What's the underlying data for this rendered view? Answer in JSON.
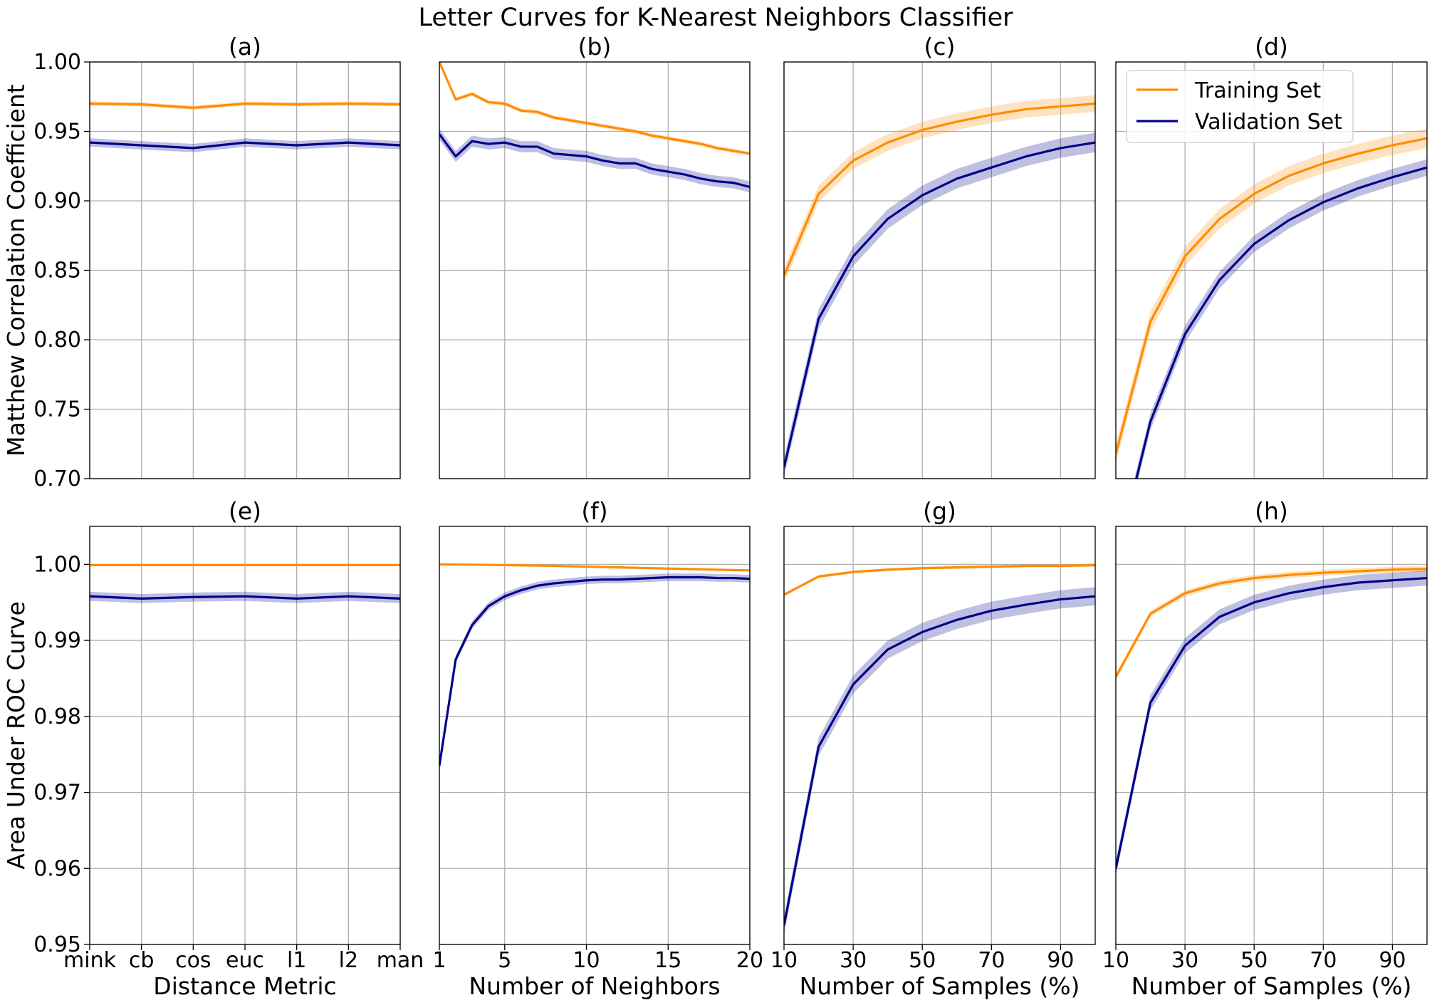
{
  "chart_data": {
    "title": "Letter Curves for K-Nearest Neighbors Classifier",
    "colors": {
      "training": "#ff8c00",
      "validation": "#00008b",
      "grid": "#b0b0b0"
    },
    "legend": {
      "placement": "top-right of panel (d)",
      "entries": [
        "Training Set",
        "Validation Set"
      ]
    },
    "rows": [
      {
        "ylabel": "Matthew Correlation Coefficient",
        "ylim": [
          0.7,
          1.0
        ],
        "yticks": [
          0.7,
          0.75,
          0.8,
          0.85,
          0.9,
          0.95,
          1.0
        ],
        "yticklabels": [
          "0.70",
          "0.75",
          "0.80",
          "0.85",
          "0.90",
          "0.95",
          "1.00"
        ]
      },
      {
        "ylabel": "Area Under ROC Curve",
        "ylim": [
          0.95,
          1.005
        ],
        "yticks": [
          0.95,
          0.96,
          0.97,
          0.98,
          0.99,
          1.0
        ],
        "yticklabels": [
          "0.95",
          "0.96",
          "0.97",
          "0.98",
          "0.99",
          "1.00"
        ]
      }
    ],
    "columns": [
      {
        "xlabel": "Distance Metric",
        "xlim": [
          1,
          7
        ],
        "xticks": [
          1,
          2,
          3,
          4,
          5,
          6,
          7
        ],
        "xticklabels": [
          "mink",
          "cb",
          "cos",
          "euc",
          "l1",
          "l2",
          "man"
        ]
      },
      {
        "xlabel": "Number of Neighbors",
        "xlim": [
          1,
          20
        ],
        "xticks": [
          1,
          5,
          10,
          15,
          20
        ],
        "xticklabels": [
          "1",
          "5",
          "10",
          "15",
          "20"
        ]
      },
      {
        "xlabel": "Number of Samples (%)",
        "xlim": [
          10,
          100
        ],
        "xticks": [
          10,
          30,
          50,
          70,
          90
        ],
        "xticklabels": [
          "10",
          "30",
          "50",
          "70",
          "90"
        ]
      },
      {
        "xlabel": "Number of Samples (%)",
        "xlim": [
          10,
          100
        ],
        "xticks": [
          10,
          30,
          50,
          70,
          90
        ],
        "xticklabels": [
          "10",
          "30",
          "50",
          "70",
          "90"
        ]
      }
    ],
    "panels": [
      {
        "title": "(a)",
        "type": "line",
        "x": [
          1,
          2,
          3,
          4,
          5,
          6,
          7
        ],
        "series": [
          {
            "name": "Training Set",
            "values": [
              0.97,
              0.9695,
              0.967,
              0.97,
              0.9695,
              0.97,
              0.9695
            ],
            "band": 0.0015
          },
          {
            "name": "Validation Set",
            "values": [
              0.942,
              0.94,
              0.938,
              0.942,
              0.94,
              0.942,
              0.94
            ],
            "band": 0.003
          }
        ]
      },
      {
        "title": "(b)",
        "type": "line",
        "x": [
          1,
          2,
          3,
          4,
          5,
          6,
          7,
          8,
          9,
          10,
          11,
          12,
          13,
          14,
          15,
          16,
          17,
          18,
          19,
          20
        ],
        "series": [
          {
            "name": "Training Set",
            "values": [
              1.0,
              0.973,
              0.977,
              0.971,
              0.97,
              0.965,
              0.964,
              0.96,
              0.958,
              0.956,
              0.954,
              0.952,
              0.95,
              0.947,
              0.945,
              0.943,
              0.941,
              0.938,
              0.936,
              0.934
            ],
            "band": 0.0015
          },
          {
            "name": "Validation Set",
            "values": [
              0.948,
              0.932,
              0.943,
              0.941,
              0.942,
              0.939,
              0.939,
              0.934,
              0.933,
              0.932,
              0.929,
              0.927,
              0.927,
              0.923,
              0.921,
              0.919,
              0.916,
              0.914,
              0.913,
              0.91
            ],
            "band": 0.004
          }
        ]
      },
      {
        "title": "(c)",
        "type": "line",
        "x": [
          10,
          20,
          30,
          40,
          50,
          60,
          70,
          80,
          90,
          100
        ],
        "series": [
          {
            "name": "Training Set",
            "values": [
              0.846,
              0.905,
              0.929,
              0.942,
              0.951,
              0.957,
              0.962,
              0.966,
              0.968,
              0.97
            ],
            "band": 0.006
          },
          {
            "name": "Validation Set",
            "values": [
              0.708,
              0.815,
              0.86,
              0.887,
              0.904,
              0.916,
              0.924,
              0.932,
              0.938,
              0.942
            ],
            "band": 0.007
          }
        ]
      },
      {
        "title": "(d)",
        "type": "line",
        "x": [
          10,
          20,
          30,
          40,
          50,
          60,
          70,
          80,
          90,
          100
        ],
        "series": [
          {
            "name": "Training Set",
            "values": [
              0.718,
              0.813,
              0.86,
              0.887,
              0.905,
              0.918,
              0.927,
              0.934,
              0.94,
              0.945
            ],
            "band": 0.007
          },
          {
            "name": "Validation Set",
            "values": [
              0.64,
              0.741,
              0.804,
              0.843,
              0.869,
              0.886,
              0.899,
              0.909,
              0.917,
              0.924
            ],
            "band": 0.006
          }
        ]
      },
      {
        "title": "(e)",
        "type": "line",
        "x": [
          1,
          2,
          3,
          4,
          5,
          6,
          7
        ],
        "series": [
          {
            "name": "Training Set",
            "values": [
              0.9999,
              0.9999,
              0.9999,
              0.9999,
              0.9999,
              0.9999,
              0.9999
            ],
            "band": 0.00015
          },
          {
            "name": "Validation Set",
            "values": [
              0.9958,
              0.9955,
              0.9957,
              0.9958,
              0.9955,
              0.9958,
              0.9955
            ],
            "band": 0.0006
          }
        ]
      },
      {
        "title": "(f)",
        "type": "line",
        "x": [
          1,
          2,
          3,
          4,
          5,
          6,
          7,
          8,
          9,
          10,
          11,
          12,
          13,
          14,
          15,
          16,
          17,
          18,
          19,
          20
        ],
        "series": [
          {
            "name": "Training Set",
            "values": [
              1.0,
              0.99998,
              0.99996,
              0.99993,
              0.9999,
              0.99987,
              0.99984,
              0.9998,
              0.99975,
              0.9997,
              0.99965,
              0.9996,
              0.99955,
              0.9995,
              0.99945,
              0.9994,
              0.99935,
              0.9993,
              0.99925,
              0.9992
            ],
            "band": 0.0001
          },
          {
            "name": "Validation Set",
            "values": [
              0.9735,
              0.9875,
              0.992,
              0.9945,
              0.9958,
              0.9966,
              0.9972,
              0.9975,
              0.9977,
              0.9979,
              0.998,
              0.998,
              0.9981,
              0.9982,
              0.9983,
              0.9983,
              0.9983,
              0.9982,
              0.9982,
              0.9981
            ],
            "band": 0.0005
          }
        ]
      },
      {
        "title": "(g)",
        "type": "line",
        "x": [
          10,
          20,
          30,
          40,
          50,
          60,
          70,
          80,
          90,
          100
        ],
        "series": [
          {
            "name": "Training Set",
            "values": [
              0.996,
              0.9984,
              0.999,
              0.9993,
              0.9995,
              0.9996,
              0.9997,
              0.9998,
              0.9998,
              0.9999
            ],
            "band": 0.0002
          },
          {
            "name": "Validation Set",
            "values": [
              0.9525,
              0.976,
              0.9842,
              0.9888,
              0.9911,
              0.9927,
              0.9939,
              0.9947,
              0.9954,
              0.9958
            ],
            "band": 0.0012
          }
        ]
      },
      {
        "title": "(h)",
        "type": "line",
        "x": [
          10,
          20,
          30,
          40,
          50,
          60,
          70,
          80,
          90,
          100
        ],
        "series": [
          {
            "name": "Training Set",
            "values": [
              0.9852,
              0.9935,
              0.9962,
              0.9975,
              0.9982,
              0.9986,
              0.9989,
              0.9991,
              0.9993,
              0.9994
            ],
            "band": 0.0004
          },
          {
            "name": "Validation Set",
            "values": [
              0.96,
              0.9818,
              0.9893,
              0.9931,
              0.995,
              0.9962,
              0.997,
              0.9976,
              0.9979,
              0.9982
            ],
            "band": 0.001
          }
        ]
      }
    ]
  }
}
